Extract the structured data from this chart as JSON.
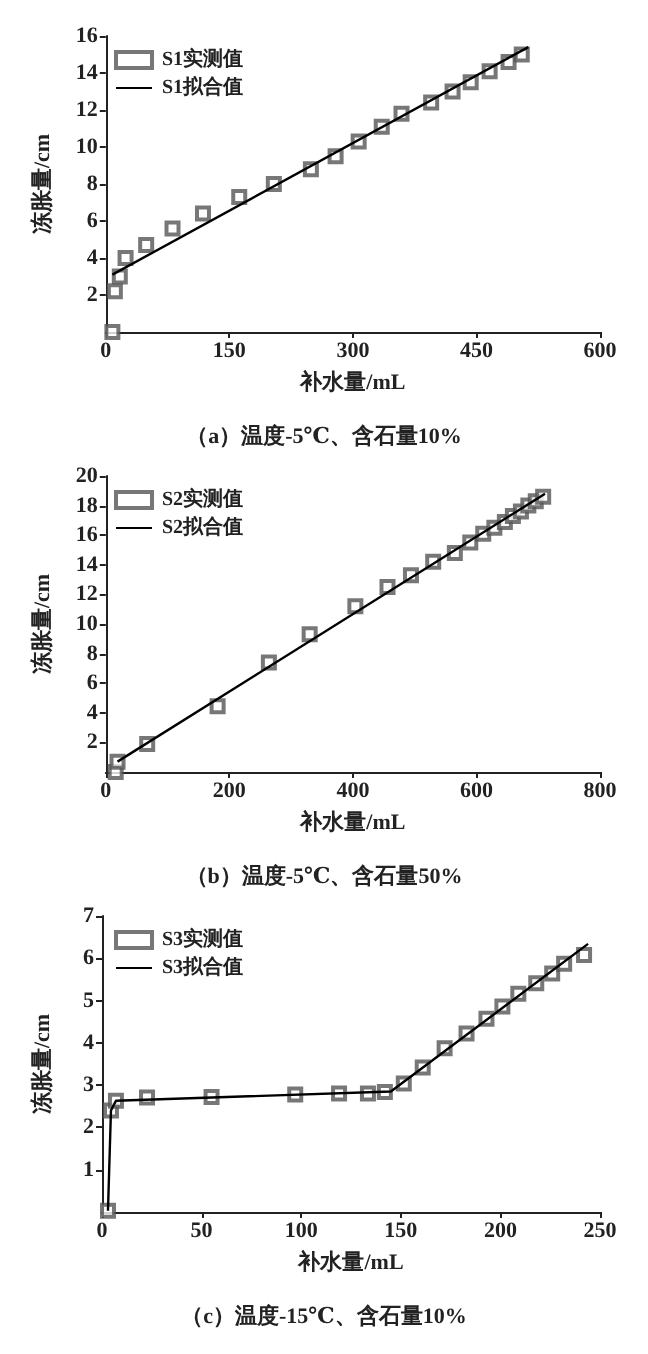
{
  "chart_data": [
    {
      "type": "scatter",
      "xlabel": "补水量/mL",
      "ylabel": "冻胀量/cm",
      "annotations": [
        "（a）温度-5℃、含石量10%"
      ],
      "xlim": [
        0,
        600
      ],
      "xticks": [
        0,
        150,
        300,
        450,
        600
      ],
      "ylim": [
        0,
        16
      ],
      "yticks": [
        2,
        4,
        6,
        8,
        10,
        12,
        14,
        16
      ],
      "grid": false,
      "legend": "top left",
      "series": [
        {
          "name": "S1实测值",
          "marker": "square",
          "color": "#555555",
          "x": [
            8,
            11,
            17,
            24,
            49,
            81,
            118,
            162,
            204,
            249,
            279,
            307,
            335,
            359,
            395,
            421,
            443,
            466,
            489,
            505
          ],
          "values": [
            0,
            2.2,
            3,
            4,
            4.7,
            5.6,
            6.4,
            7.3,
            8,
            8.8,
            9.5,
            10.3,
            11.1,
            11.8,
            12.4,
            13,
            13.5,
            14.1,
            14.6,
            15
          ]
        },
        {
          "name": "S1拟合值",
          "type": "line",
          "marker": "none",
          "line_style": "solid",
          "color": "#000000",
          "x": [
            8,
            513
          ],
          "values": [
            3.1,
            15.4
          ]
        }
      ]
    },
    {
      "type": "scatter",
      "xlabel": "补水量/mL",
      "ylabel": "冻胀量/cm",
      "annotations": [
        "（b）温度-5℃、含石量50%"
      ],
      "xlim": [
        0,
        800
      ],
      "xticks": [
        0,
        200,
        400,
        600,
        800
      ],
      "ylim": [
        0,
        20
      ],
      "yticks": [
        2,
        4,
        6,
        8,
        10,
        12,
        14,
        16,
        18,
        20
      ],
      "grid": false,
      "legend": "top left",
      "series": [
        {
          "name": "S2实测值",
          "marker": "square",
          "color": "#555555",
          "x": [
            16,
            19,
            67,
            181,
            264,
            330,
            404,
            456,
            494,
            530,
            565,
            590,
            611,
            629,
            646,
            659,
            672,
            684,
            696,
            708
          ],
          "values": [
            0,
            0.7,
            1.9,
            4.45,
            7.4,
            9.3,
            11.2,
            12.5,
            13.3,
            14.2,
            14.8,
            15.5,
            16.1,
            16.5,
            16.9,
            17.3,
            17.6,
            18,
            18.3,
            18.6
          ]
        },
        {
          "name": "S2拟合值",
          "type": "line",
          "marker": "none",
          "line_style": "solid",
          "color": "#000000",
          "x": [
            19,
            711
          ],
          "values": [
            0.7,
            18.8
          ]
        }
      ]
    },
    {
      "type": "scatter",
      "xlabel": "补水量/mL",
      "ylabel": "冻胀量/cm",
      "annotations": [
        "（c）温度-15℃、含石量10%"
      ],
      "xlim": [
        0,
        250
      ],
      "xticks": [
        0,
        50,
        100,
        150,
        200,
        250
      ],
      "ylim": [
        0,
        7
      ],
      "yticks": [
        1,
        2,
        3,
        4,
        5,
        6,
        7
      ],
      "grid": false,
      "legend": "top left",
      "series": [
        {
          "name": "S3实测值",
          "marker": "square",
          "color": "#555555",
          "x": [
            3,
            4.5,
            7,
            22.6,
            55,
            97,
            119,
            133.5,
            142,
            151.5,
            161,
            172,
            183,
            193,
            201,
            209,
            218,
            226,
            232,
            242
          ],
          "values": [
            0.03,
            2.4,
            2.63,
            2.71,
            2.72,
            2.78,
            2.8,
            2.8,
            2.84,
            3.04,
            3.42,
            3.87,
            4.22,
            4.57,
            4.86,
            5.16,
            5.41,
            5.64,
            5.87,
            6.08
          ]
        },
        {
          "name": "S3拟合值",
          "type": "line",
          "marker": "none",
          "line_style": "solid",
          "color": "#000000",
          "x": [
            3,
            4.5,
            7,
            145,
            244
          ],
          "values": [
            0.03,
            2.4,
            2.63,
            2.85,
            6.34
          ]
        }
      ]
    }
  ]
}
